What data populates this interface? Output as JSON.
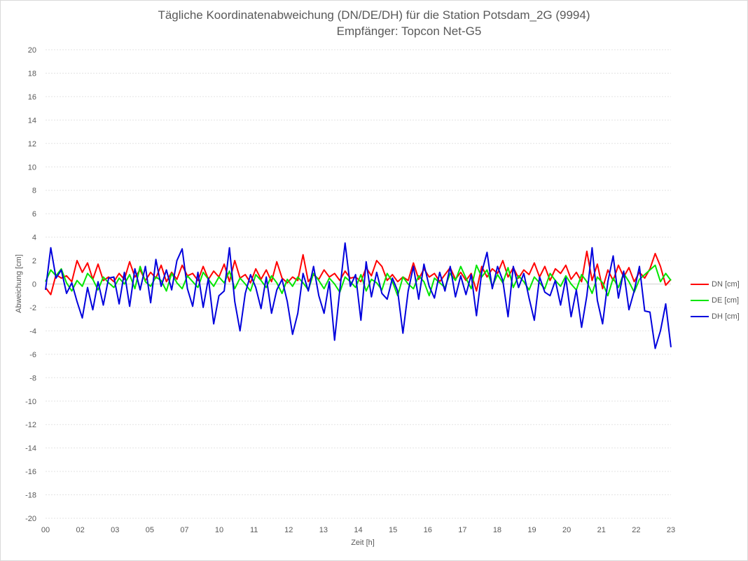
{
  "chart_data": {
    "type": "line",
    "title": "Tägliche Koordinatenabweichung (DN/DE/DH) für die Station Potsdam_2G (9994)",
    "subtitle": "Empfänger: Topcon Net-G5",
    "xlabel": "Zeit [h]",
    "ylabel": "Abweichung [cm]",
    "ylim": [
      -20,
      20
    ],
    "ystep": 2,
    "grid": true,
    "legend_position": "right",
    "x_tick_labels": [
      "00",
      "02",
      "03",
      "05",
      "07",
      "10",
      "11",
      "12",
      "13",
      "14",
      "15",
      "16",
      "17",
      "18",
      "19",
      "20",
      "21",
      "22",
      "23"
    ],
    "series": [
      {
        "name": "DN [cm]",
        "color": "#ff0000",
        "values": [
          -0.3,
          -0.9,
          0.8,
          0.5,
          0.7,
          0.2,
          2.0,
          1.0,
          1.8,
          0.4,
          1.7,
          0.3,
          0.6,
          0.2,
          0.9,
          0.4,
          1.9,
          0.6,
          1.2,
          0.3,
          1.0,
          0.5,
          1.6,
          0.2,
          1.0,
          0.4,
          1.6,
          0.7,
          0.9,
          0.3,
          1.5,
          0.4,
          1.1,
          0.6,
          1.7,
          0.2,
          2.0,
          0.5,
          0.8,
          0.1,
          1.3,
          0.4,
          1.2,
          0.2,
          1.9,
          0.5,
          0.1,
          0.6,
          0.3,
          2.5,
          0.2,
          0.8,
          0.4,
          1.2,
          0.6,
          0.9,
          0.3,
          1.1,
          0.5,
          0.6,
          0.2,
          1.4,
          0.7,
          2.0,
          1.5,
          0.3,
          0.8,
          0.2,
          0.6,
          0.3,
          1.8,
          0.4,
          1.3,
          0.6,
          0.9,
          0.2,
          0.8,
          1.4,
          0.4,
          1.0,
          0.3,
          0.9,
          -0.6,
          1.5,
          0.6,
          1.3,
          0.9,
          2.0,
          0.6,
          1.4,
          0.5,
          1.2,
          0.8,
          1.8,
          0.6,
          1.5,
          0.3,
          1.3,
          0.9,
          1.6,
          0.4,
          1.0,
          0.2,
          2.8,
          0.3,
          1.7,
          -0.4,
          1.2,
          0.3,
          1.6,
          0.6,
          1.4,
          0.2,
          1.0,
          0.5,
          1.3,
          2.6,
          1.5,
          -0.1,
          0.4
        ]
      },
      {
        "name": "DE [cm]",
        "color": "#00e600",
        "values": [
          0.2,
          1.2,
          0.7,
          1.3,
          0.1,
          -0.6,
          0.3,
          -0.2,
          0.9,
          0.4,
          -0.5,
          0.6,
          0.1,
          -0.3,
          0.5,
          0.0,
          0.8,
          -0.4,
          1.5,
          0.2,
          -0.2,
          0.6,
          0.3,
          -0.6,
          0.9,
          0.1,
          -0.4,
          0.7,
          0.2,
          -0.3,
          1.0,
          0.4,
          -0.2,
          0.6,
          0.1,
          1.1,
          -0.4,
          0.5,
          0.0,
          -0.6,
          0.8,
          0.3,
          -0.3,
          0.7,
          0.1,
          -0.8,
          0.4,
          -0.2,
          0.6,
          0.1,
          -0.5,
          0.9,
          0.3,
          -0.4,
          0.5,
          0.0,
          -0.7,
          0.6,
          0.2,
          -0.3,
          0.8,
          -0.6,
          0.4,
          0.1,
          -0.5,
          0.9,
          0.2,
          -1.0,
          0.6,
          0.0,
          -0.4,
          0.7,
          0.2,
          -1.0,
          0.5,
          0.1,
          -0.3,
          0.9,
          0.3,
          1.5,
          0.5,
          -0.4,
          1.6,
          0.6,
          1.2,
          -0.2,
          0.8,
          0.1,
          1.4,
          -0.3,
          0.7,
          0.2,
          -0.5,
          0.6,
          0.1,
          -0.4,
          0.9,
          0.3,
          -0.2,
          0.7,
          0.0,
          -0.5,
          0.8,
          0.2,
          -0.8,
          0.6,
          0.1,
          -1.0,
          0.5,
          -0.3,
          0.9,
          0.2,
          -0.7,
          0.4,
          0.8,
          1.2,
          1.6,
          0.2,
          0.9,
          0.3
        ]
      },
      {
        "name": "DH [cm]",
        "color": "#0000dd",
        "values": [
          -0.5,
          3.1,
          0.5,
          1.2,
          -0.8,
          0.1,
          -1.5,
          -2.9,
          -0.3,
          -2.2,
          0.2,
          -1.8,
          0.5,
          0.6,
          -1.7,
          1.0,
          -1.9,
          1.3,
          -0.5,
          1.5,
          -1.6,
          2.1,
          -0.2,
          1.2,
          -0.5,
          2.0,
          3.0,
          -0.4,
          -1.9,
          1.0,
          -2.0,
          0.5,
          -3.4,
          -1.0,
          -0.6,
          3.1,
          -1.5,
          -4.0,
          -0.8,
          0.8,
          -0.3,
          -2.1,
          0.6,
          -2.5,
          -0.5,
          0.4,
          -1.5,
          -4.3,
          -2.5,
          0.9,
          -0.6,
          1.5,
          -1.0,
          -2.5,
          0.2,
          -4.8,
          -0.5,
          3.5,
          -0.2,
          0.8,
          -3.1,
          1.9,
          -1.1,
          1.0,
          -0.8,
          -1.3,
          0.5,
          -0.6,
          -4.2,
          -0.6,
          1.5,
          -1.3,
          1.7,
          -0.2,
          -1.2,
          1.0,
          -0.6,
          1.5,
          -1.1,
          0.7,
          -0.9,
          0.8,
          -2.7,
          1.0,
          2.7,
          -0.4,
          1.5,
          0.3,
          -2.8,
          1.5,
          -0.3,
          0.9,
          -1.2,
          -3.1,
          0.6,
          -0.7,
          -1.0,
          0.3,
          -1.8,
          0.5,
          -2.8,
          -0.5,
          -3.7,
          -1.0,
          3.1,
          -1.4,
          -3.4,
          0.2,
          2.4,
          -1.2,
          1.1,
          -2.2,
          -0.6,
          1.5,
          -2.3,
          -2.4,
          -5.5,
          -4.0,
          -1.7,
          -5.4
        ]
      }
    ]
  }
}
